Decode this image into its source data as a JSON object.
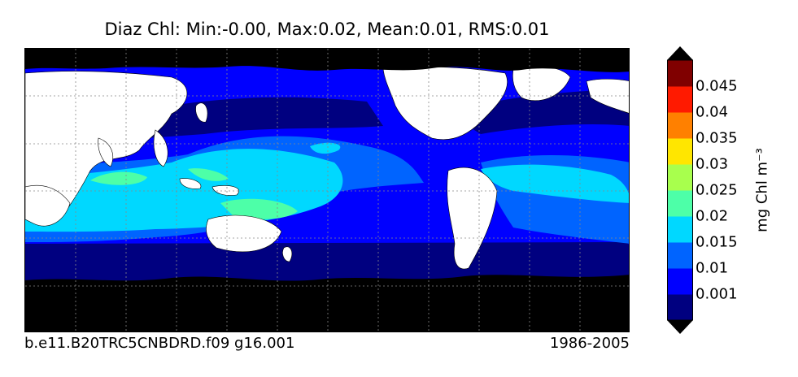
{
  "title": "Diaz Chl: Min:-0.00, Max:0.02, Mean:0.01, RMS:0.01",
  "footer": {
    "case_name": "b.e11.B20TRC5CNBDRD.f09 g16.001",
    "years": "1986-2005"
  },
  "colorbar": {
    "unit_label": "mg Chl m⁻³",
    "ticks": [
      "0.001",
      "0.01",
      "0.015",
      "0.02",
      "0.025",
      "0.03",
      "0.035",
      "0.04",
      "0.045"
    ],
    "bins": [
      {
        "name": "bin-0",
        "color": "#000080"
      },
      {
        "name": "bin-1",
        "color": "#0000ff"
      },
      {
        "name": "bin-2",
        "color": "#0064ff"
      },
      {
        "name": "bin-3",
        "color": "#00d8ff"
      },
      {
        "name": "bin-4",
        "color": "#4dffa8"
      },
      {
        "name": "bin-5",
        "color": "#a8ff4d"
      },
      {
        "name": "bin-6",
        "color": "#ffe600"
      },
      {
        "name": "bin-7",
        "color": "#ff8000"
      },
      {
        "name": "bin-8",
        "color": "#ff1a00"
      },
      {
        "name": "bin-9",
        "color": "#800000"
      }
    ],
    "extend_colors": {
      "low": "#000000",
      "high": "#000000"
    }
  },
  "map": {
    "colors": {
      "land": "#ffffff",
      "ice": "#000000",
      "grid": "#888888",
      "coast": "#000000"
    }
  }
}
